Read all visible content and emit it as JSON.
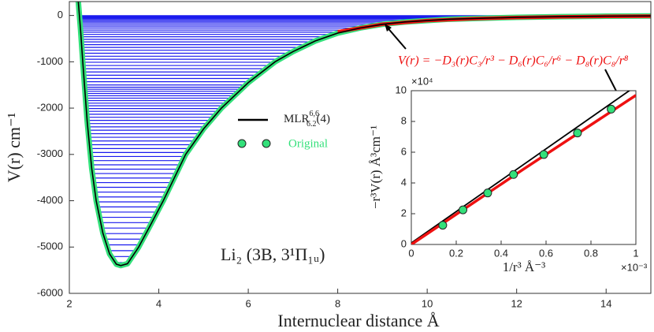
{
  "chart_data": [
    {
      "type": "potential",
      "xlabel": "Internuclear distance Å",
      "ylabel": "V(r) cm⁻¹",
      "xlim": [
        2,
        15
      ],
      "ylim": [
        -6000,
        300
      ],
      "xticks": [
        2,
        4,
        6,
        8,
        10,
        12,
        14
      ],
      "yticks": [
        -6000,
        -5000,
        -4000,
        -3000,
        -2000,
        -1000,
        0
      ],
      "x": [
        2.2,
        2.25,
        2.3,
        2.4,
        2.5,
        2.6,
        2.75,
        2.9,
        3.05,
        3.15,
        3.3,
        3.55,
        3.8,
        4.1,
        4.35,
        4.6,
        5.0,
        5.4,
        6.0,
        6.6,
        7.0,
        7.5,
        8.0,
        8.5,
        9.0,
        9.5,
        10.5,
        12,
        13,
        14,
        15
      ],
      "series": [
        {
          "name": "Original",
          "color": "#33e07a",
          "values": [
            300,
            -300,
            -1000,
            -2300,
            -3300,
            -4000,
            -4700,
            -5150,
            -5370,
            -5400,
            -5360,
            -5000,
            -4550,
            -4000,
            -3500,
            -3000,
            -2450,
            -2000,
            -1450,
            -1000,
            -780,
            -550,
            -380,
            -270,
            -190,
            -140,
            -80,
            -40,
            -25,
            -15,
            -10
          ]
        },
        {
          "name": "MLR",
          "name_sup": "6,6",
          "name_sub": "6.2",
          "name_suffix": "(4)",
          "color": "#000000",
          "values": [
            300,
            -300,
            -1000,
            -2300,
            -3300,
            -4000,
            -4700,
            -5150,
            -5370,
            -5400,
            -5360,
            -5000,
            -4550,
            -4000,
            -3500,
            -3000,
            -2450,
            -2000,
            -1450,
            -1000,
            -780,
            -550,
            -380,
            -270,
            -190,
            -140,
            -80,
            -40,
            -25,
            -15,
            -10
          ]
        }
      ],
      "long_range": {
        "color": "#ee1111",
        "x": [
          8,
          9,
          10,
          11,
          12,
          13,
          14,
          15
        ],
        "values": [
          -350,
          -190,
          -110,
          -70,
          -45,
          -30,
          -20,
          -14
        ]
      },
      "levels": {
        "color": "#1a1aee",
        "values": [
          -5335,
          -5205,
          -5078,
          -4953,
          -4830,
          -4709,
          -4590,
          -4473,
          -4358,
          -4245,
          -4134,
          -4025,
          -3918,
          -3813,
          -3710,
          -3609,
          -3510,
          -3413,
          -3318,
          -3225,
          -3134,
          -3045,
          -2958,
          -2873,
          -2790,
          -2709,
          -2630,
          -2553,
          -2478,
          -2405,
          -2334,
          -2265,
          -2198,
          -2133,
          -2070,
          -2009,
          -1950,
          -1893,
          -1838,
          -1785,
          -1734,
          -1685,
          -1638,
          -1593,
          -1550,
          -1500,
          -1430,
          -1360,
          -1290,
          -1220,
          -1150,
          -1080,
          -1010,
          -945,
          -880,
          -815,
          -750,
          -690,
          -630,
          -570,
          -515,
          -460,
          -410,
          -360,
          -315,
          -270,
          -230,
          -195,
          -160,
          -130,
          -100,
          -75,
          -55,
          -38,
          -25,
          -15,
          -8,
          -3
        ]
      },
      "formula": "V(r) = −D₃(r)C₃/r³ − D₆(r)C₆/r⁶ − D₈(r)C₈/r⁸",
      "molecule": "Li₂ (3B, 3¹Π₁ᵤ)"
    },
    {
      "type": "inset",
      "xlabel": "1/r³  Å⁻³",
      "ylabel": "−r³V(r) Å³cm⁻¹",
      "x_exponent": "×10⁻³",
      "y_exponent": "×10⁴",
      "xlim": [
        0,
        1
      ],
      "ylim": [
        0,
        10
      ],
      "xticks": [
        0,
        0.2,
        0.4,
        0.6,
        0.8,
        1
      ],
      "yticks": [
        0,
        2,
        4,
        6,
        8,
        10
      ],
      "points": {
        "color": "#33e07a",
        "x": [
          0.14,
          0.23,
          0.34,
          0.455,
          0.59,
          0.74,
          0.89
        ],
        "values": [
          1.25,
          2.25,
          3.35,
          4.55,
          5.85,
          7.25,
          8.8
        ]
      },
      "fits": [
        {
          "color": "#000000",
          "x": [
            0,
            1
          ],
          "values": [
            0.1,
            10.3
          ]
        },
        {
          "color": "#ee1111",
          "x": [
            0,
            0.5,
            1
          ],
          "values": [
            0,
            4.9,
            9.7
          ]
        }
      ]
    }
  ]
}
